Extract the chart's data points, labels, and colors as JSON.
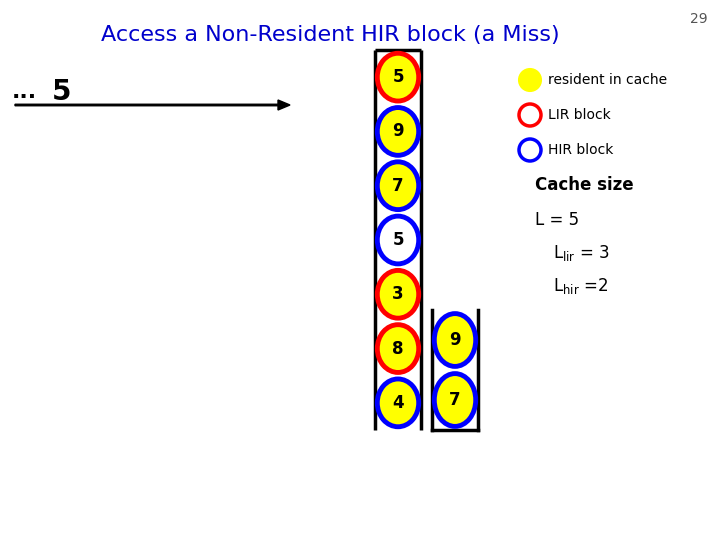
{
  "title": "Access a Non-Resident HIR block (a Miss)",
  "title_color": "#0000CC",
  "slide_number": "29",
  "bg_color": "#FFFFFF",
  "main_stack": {
    "labels": [
      "5",
      "9",
      "7",
      "5",
      "3",
      "8",
      "4"
    ],
    "ring_colors": [
      "red",
      "blue",
      "blue",
      "blue",
      "red",
      "red",
      "blue"
    ],
    "filled": [
      true,
      true,
      true,
      false,
      true,
      true,
      true
    ]
  },
  "side_stack": {
    "labels": [
      "9",
      "7"
    ],
    "ring_colors": [
      "blue",
      "blue"
    ],
    "filled": [
      true,
      true
    ]
  },
  "legend": {
    "resident_label": "resident in cache",
    "lir_label": "LIR block",
    "hir_label": "HIR block"
  },
  "yellow": "#FFFF00",
  "red": "#FF0000",
  "blue": "#0000FF"
}
